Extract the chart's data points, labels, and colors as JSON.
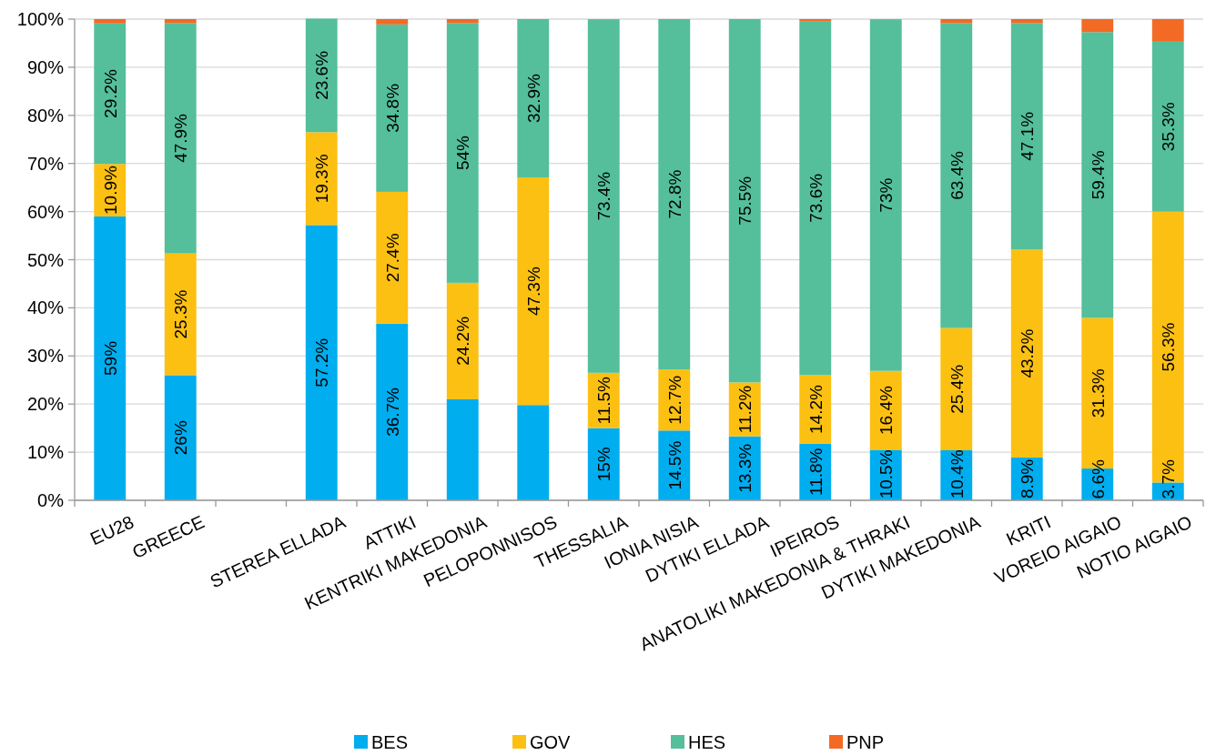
{
  "chart_data": {
    "type": "bar",
    "stacked": true,
    "categories": [
      "EU28",
      "GREECE",
      null,
      "STEREA ELLADA",
      "ATTIKI",
      "KENTRIKI MAKEDONIA",
      "PELOPONNISOS",
      "THESSALIA",
      "IONIA NISIA",
      "DYTIKI ELLADA",
      "IPEIROS",
      "ANATOLIKI MAKEDONIA & THRAKI",
      "DYTIKI MAKEDONIA",
      "KRITI",
      "VOREIO AIGAIO",
      "NOTIO AIGAIO"
    ],
    "series": [
      {
        "name": "BES",
        "color": "#00adee",
        "values": [
          59,
          26,
          null,
          57.2,
          36.7,
          21,
          19.8,
          15,
          14.5,
          13.3,
          11.8,
          10.5,
          10.4,
          8.9,
          6.6,
          3.7
        ],
        "value_labels": [
          "59%",
          "26%",
          null,
          "57.2%",
          "36.7%",
          null,
          null,
          "15%",
          "14.5%",
          "13.3%",
          "11.8%",
          "10.5%",
          "10.4%",
          "8.9%",
          "6.6%",
          "3.7%"
        ]
      },
      {
        "name": "GOV",
        "color": "#fcc012",
        "values": [
          10.9,
          25.3,
          null,
          19.3,
          27.4,
          24.2,
          47.3,
          11.5,
          12.7,
          11.2,
          14.2,
          16.4,
          25.4,
          43.2,
          31.3,
          56.3
        ],
        "value_labels": [
          "10.9%",
          "25.3%",
          null,
          "19.3%",
          "27.4%",
          "24.2%",
          "47.3%",
          "11.5%",
          "12.7%",
          "11.2%",
          "14.2%",
          "16.4%",
          "25.4%",
          "43.2%",
          "31.3%",
          "56.3%"
        ]
      },
      {
        "name": "HES",
        "color": "#54bf9a",
        "values": [
          29.2,
          47.9,
          null,
          23.6,
          34.8,
          54,
          32.9,
          73.4,
          72.8,
          75.5,
          73.6,
          73,
          63.4,
          47.1,
          59.4,
          35.3
        ],
        "value_labels": [
          "29.2%",
          "47.9%",
          null,
          "23.6%",
          "34.8%",
          "54%",
          "32.9%",
          "73.4%",
          "72.8%",
          "75.5%",
          "73.6%",
          "73%",
          "63.4%",
          "47.1%",
          "59.4%",
          "35.3%"
        ]
      },
      {
        "name": "PNP",
        "color": "#f36a25",
        "values": [
          0.9,
          0.8,
          null,
          0,
          1.1,
          0.8,
          0,
          0.1,
          0,
          0,
          0.4,
          0.1,
          0.8,
          0.8,
          2.7,
          4.7
        ]
      }
    ],
    "ylim": [
      0,
      100
    ],
    "yticks": [
      {
        "value": 0,
        "label": "0%"
      },
      {
        "value": 10,
        "label": "10%"
      },
      {
        "value": 20,
        "label": "20%"
      },
      {
        "value": 30,
        "label": "30%"
      },
      {
        "value": 40,
        "label": "40%"
      },
      {
        "value": 50,
        "label": "50%"
      },
      {
        "value": 60,
        "label": "60%"
      },
      {
        "value": 70,
        "label": "70%"
      },
      {
        "value": 80,
        "label": "80%"
      },
      {
        "value": 90,
        "label": "90%"
      },
      {
        "value": 100,
        "label": "100%"
      }
    ],
    "grid": "y",
    "legend": "bottom"
  }
}
